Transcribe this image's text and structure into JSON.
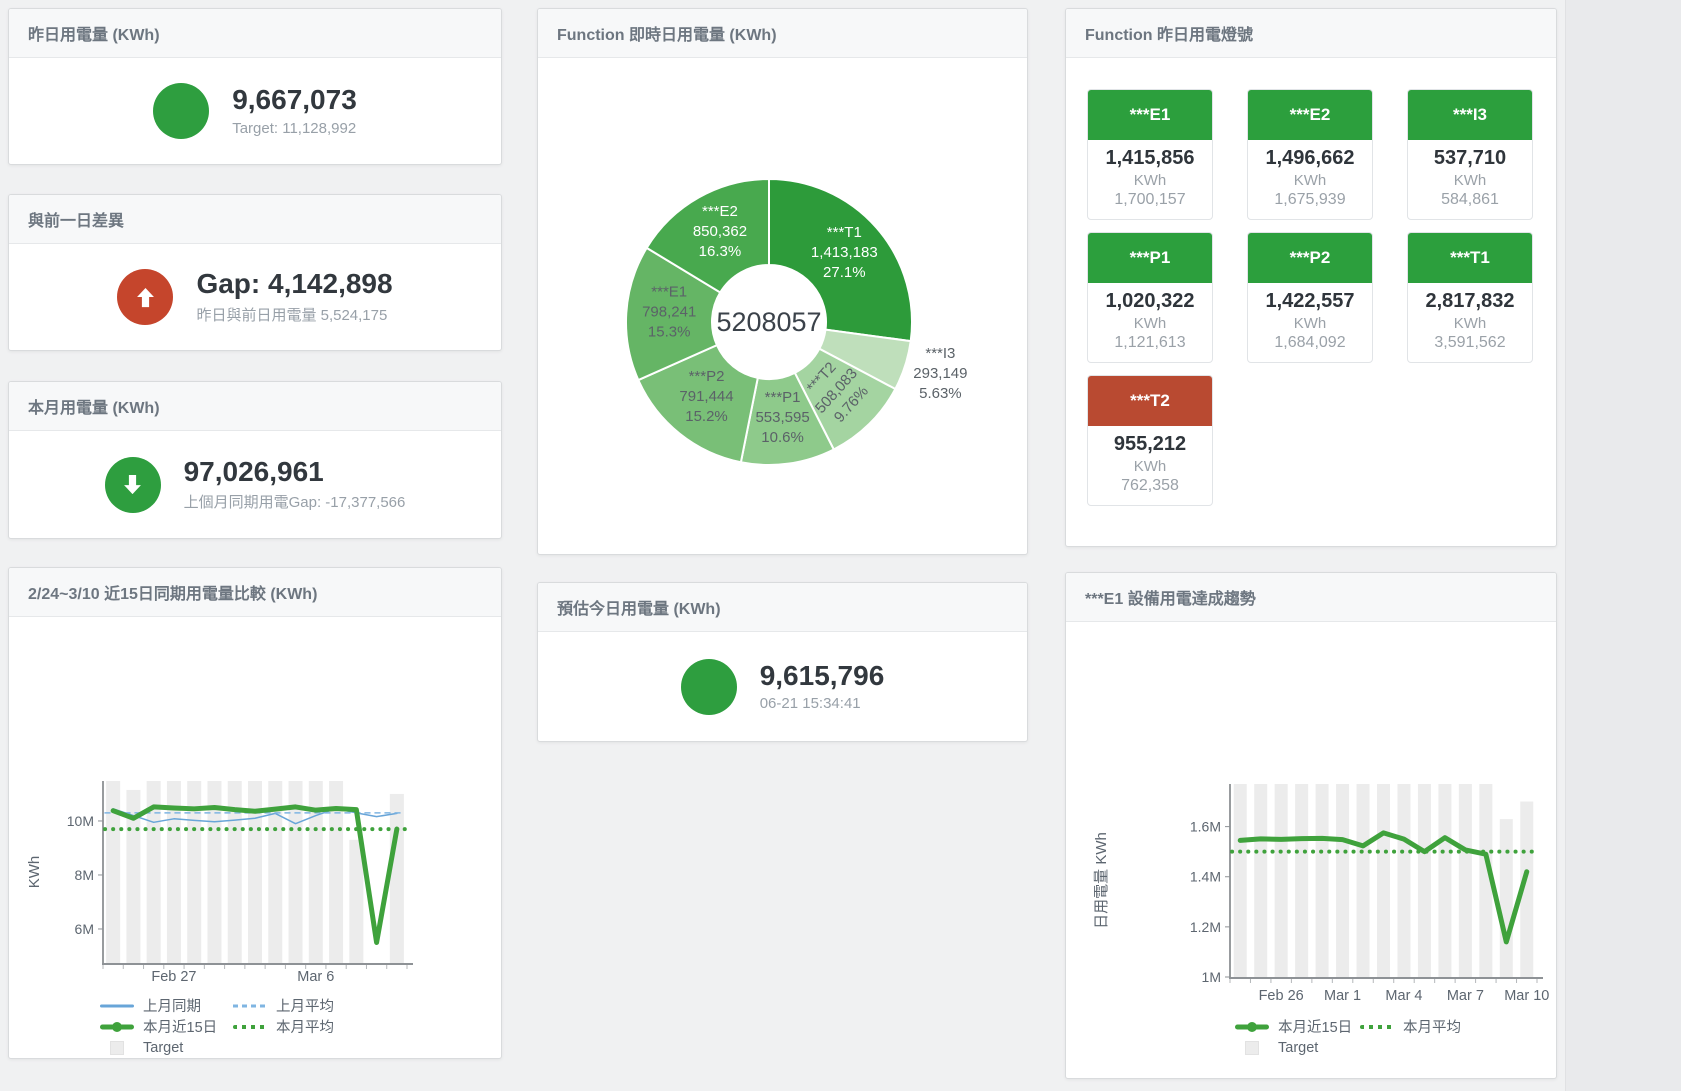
{
  "colors": {
    "green": "#2e9e3f",
    "red": "#c5452c",
    "tile_green": "#2c9f3d",
    "tile_red": "#b94a31",
    "target_bar": "#ececec",
    "blue": "#68a5d8",
    "blue_light": "#7fb5e2",
    "line_green": "#3fa23c"
  },
  "panels": {
    "yesterday": {
      "title": "昨日用電量 (KWh)",
      "value": "9,667,073",
      "subtitle": "Target: 11,128,992"
    },
    "gap": {
      "title": "與前一日差異",
      "value": "Gap: 4,142,898",
      "subtitle": "昨日與前日用電量 5,524,175"
    },
    "month": {
      "title": "本月用電量 (KWh)",
      "value": "97,026,961",
      "subtitle": "上個月同期用電Gap: -17,377,566"
    },
    "realtime": {
      "title": "Function 即時日用電量 (KWh)"
    },
    "lights": {
      "title": "Function 昨日用電燈號",
      "tiles": [
        {
          "label": "***E1",
          "value": "1,415,856",
          "unit": "KWh",
          "target": "1,700,157",
          "color": "green"
        },
        {
          "label": "***E2",
          "value": "1,496,662",
          "unit": "KWh",
          "target": "1,675,939",
          "color": "green"
        },
        {
          "label": "***I3",
          "value": "537,710",
          "unit": "KWh",
          "target": "584,861",
          "color": "green"
        },
        {
          "label": "***P1",
          "value": "1,020,322",
          "unit": "KWh",
          "target": "1,121,613",
          "color": "green"
        },
        {
          "label": "***P2",
          "value": "1,422,557",
          "unit": "KWh",
          "target": "1,684,092",
          "color": "green"
        },
        {
          "label": "***T1",
          "value": "2,817,832",
          "unit": "KWh",
          "target": "3,591,562",
          "color": "green"
        },
        {
          "label": "***T2",
          "value": "955,212",
          "unit": "KWh",
          "target": "762,358",
          "color": "red"
        }
      ]
    },
    "compare": {
      "title": "2/24~3/10 近15日同期用電量比較 (KWh)"
    },
    "estimate": {
      "title": "預估今日用電量 (KWh)",
      "value": "9,615,796",
      "subtitle": "06-21 15:34:41"
    },
    "trend": {
      "title": "***E1 設備用電達成趨勢"
    }
  },
  "chart_data": [
    {
      "id": "realtime-pie",
      "type": "pie",
      "title": "Function 即時日用電量 (KWh)",
      "center_total": "5208057",
      "slices": [
        {
          "name": "***T1",
          "value": 1413183,
          "display": "1,413,183",
          "pct": "27.1%",
          "color": "#2d9b3a",
          "text": "#ffffff"
        },
        {
          "name": "***I3",
          "value": 293149,
          "display": "293,149",
          "pct": "5.63%",
          "color": "#bfdfbb",
          "text": "#5b6268",
          "outside": true
        },
        {
          "name": "***T2",
          "value": 508083,
          "display": "508,083",
          "pct": "9.76%",
          "color": "#a4d4a1",
          "text": "#5b6268",
          "rotate": -48
        },
        {
          "name": "***P1",
          "value": 553595,
          "display": "553,595",
          "pct": "10.6%",
          "color": "#8eca8b",
          "text": "#5b6268"
        },
        {
          "name": "***P2",
          "value": 791444,
          "display": "791,444",
          "pct": "15.2%",
          "color": "#79bf77",
          "text": "#5b6268"
        },
        {
          "name": "***E1",
          "value": 798241,
          "display": "798,241",
          "pct": "15.3%",
          "color": "#65b565",
          "text": "#5b6268"
        },
        {
          "name": "***E2",
          "value": 850362,
          "display": "850,362",
          "pct": "16.3%",
          "color": "#48a94e",
          "text": "#ffffff"
        }
      ]
    },
    {
      "id": "compare-15d",
      "type": "line",
      "title": "2/24~3/10 近15日同期用電量比較 (KWh)",
      "ylabel": "KWh",
      "unit": "M KWh",
      "ylim": [
        4.74,
        11.48
      ],
      "yticks": [
        {
          "v": 6,
          "label": "6M"
        },
        {
          "v": 8,
          "label": "8M"
        },
        {
          "v": 10,
          "label": "10M"
        }
      ],
      "categories": [
        "Feb 24",
        "Feb 25",
        "Feb 26",
        "Feb 27",
        "Feb 28",
        "Mar 1",
        "Mar 2",
        "Mar 3",
        "Mar 4",
        "Mar 5",
        "Mar 6",
        "Mar 7",
        "Mar 8",
        "Mar 9",
        "Mar 10"
      ],
      "xticks": [
        {
          "i": 3,
          "label": "Feb 27"
        },
        {
          "i": 10,
          "label": "Mar 6"
        }
      ],
      "target": {
        "name": "Target",
        "color": "#ececec",
        "values": [
          11.48,
          11.15,
          11.48,
          11.48,
          11.48,
          11.48,
          11.48,
          11.48,
          11.48,
          11.48,
          11.48,
          11.48,
          9.3,
          0,
          11.0
        ]
      },
      "series": [
        {
          "name": "上月同期",
          "color": "#68a5d8",
          "width": 1.5,
          "values": [
            10.45,
            10.2,
            9.95,
            10.08,
            10.02,
            9.97,
            10.03,
            10.1,
            10.28,
            9.9,
            10.2,
            10.46,
            10.3,
            10.16,
            10.28
          ]
        },
        {
          "name": "上月平均",
          "color": "#7fb5e2",
          "width": 1.5,
          "dash": "5 5",
          "value": 10.3
        },
        {
          "name": "本月平均",
          "color": "#3fa23c",
          "width": 4,
          "dash": "0.1 8",
          "value": 9.7
        },
        {
          "name": "本月近15日",
          "color": "#3fa23c",
          "width": 5,
          "values": [
            10.38,
            10.1,
            10.52,
            10.48,
            10.45,
            10.5,
            10.42,
            10.36,
            10.44,
            10.52,
            10.4,
            10.46,
            10.42,
            5.5,
            9.7
          ]
        }
      ],
      "legend_rows": [
        [
          {
            "swatch": "line",
            "color": "#68a5d8",
            "label": "上月同期"
          },
          {
            "swatch": "dash",
            "color": "#7fb5e2",
            "label": "上月平均"
          }
        ],
        [
          {
            "swatch": "thickline",
            "color": "#3fa23c",
            "label": "本月近15日"
          },
          {
            "swatch": "dots",
            "color": "#3fa23c",
            "label": "本月平均"
          }
        ],
        [
          {
            "swatch": "square",
            "color": "#ececec",
            "label": "Target"
          }
        ]
      ]
    },
    {
      "id": "e1-trend",
      "type": "line",
      "title": "***E1 設備用電達成趨勢",
      "ylabel": "日用電量 KWh",
      "unit": "M KWh",
      "ylim": [
        1.0,
        1.77
      ],
      "yticks": [
        {
          "v": 1,
          "label": "1M"
        },
        {
          "v": 1.2,
          "label": "1.2M"
        },
        {
          "v": 1.4,
          "label": "1.4M"
        },
        {
          "v": 1.6,
          "label": "1.6M"
        }
      ],
      "categories": [
        "Feb 24",
        "Feb 25",
        "Feb 26",
        "Feb 27",
        "Feb 28",
        "Mar 1",
        "Mar 2",
        "Mar 3",
        "Mar 4",
        "Mar 5",
        "Mar 6",
        "Mar 7",
        "Mar 8",
        "Mar 9",
        "Mar 10"
      ],
      "xticks": [
        {
          "i": 2,
          "label": "Feb 26"
        },
        {
          "i": 5,
          "label": "Mar 1"
        },
        {
          "i": 8,
          "label": "Mar 4"
        },
        {
          "i": 11,
          "label": "Mar 7"
        },
        {
          "i": 14,
          "label": "Mar 10"
        }
      ],
      "target": {
        "name": "Target",
        "color": "#ececec",
        "values": [
          1.77,
          1.77,
          1.77,
          1.77,
          1.77,
          1.77,
          1.77,
          1.77,
          1.77,
          1.77,
          1.77,
          1.77,
          1.77,
          1.63,
          1.7
        ]
      },
      "series": [
        {
          "name": "本月平均",
          "color": "#3fa23c",
          "width": 4,
          "dash": "0.1 8",
          "value": 1.5
        },
        {
          "name": "本月近15日",
          "color": "#3fa23c",
          "width": 5,
          "values": [
            1.545,
            1.551,
            1.549,
            1.552,
            1.553,
            1.548,
            1.523,
            1.575,
            1.55,
            1.5,
            1.556,
            1.507,
            1.49,
            1.14,
            1.42
          ]
        }
      ],
      "legend_rows": [
        [
          {
            "swatch": "thickline",
            "color": "#3fa23c",
            "label": "本月近15日"
          },
          {
            "swatch": "dots",
            "color": "#3fa23c",
            "label": "本月平均"
          }
        ],
        [
          {
            "swatch": "square",
            "color": "#ececec",
            "label": "Target"
          }
        ]
      ]
    }
  ]
}
